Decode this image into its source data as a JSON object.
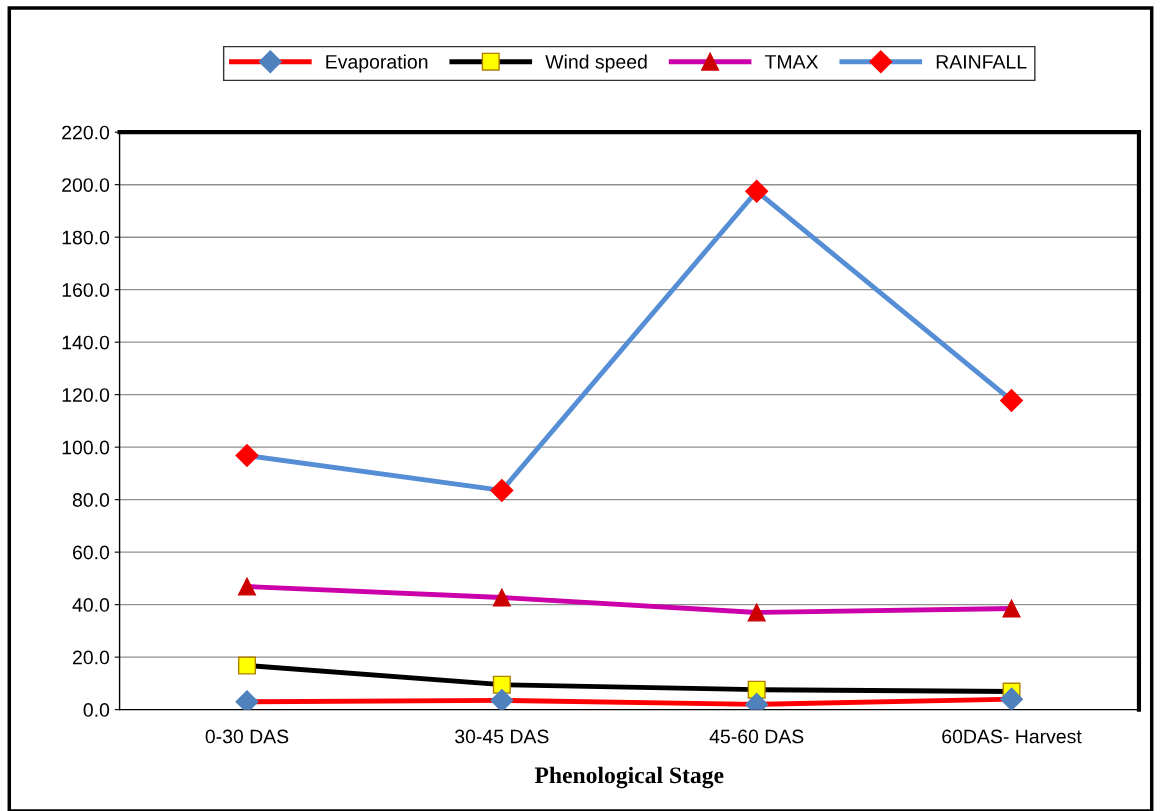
{
  "chart_data": {
    "type": "line",
    "xlabel": "Phenological Stage",
    "categories": [
      "0-30 DAS",
      "30-45 DAS",
      "45-60 DAS",
      "60DAS- Harvest"
    ],
    "series": [
      {
        "name": "Evaporation",
        "color": "#ff0000",
        "marker": "diamond",
        "colors": [
          "#4f81bd",
          "#4f81bd",
          "#4f81bd",
          "#4f81bd"
        ],
        "values": [
          3.0,
          3.5,
          2.0,
          4.0
        ]
      },
      {
        "name": "Wind speed",
        "color": "#000000",
        "marker": "square",
        "colors": [
          "#ffff00",
          "#ffff00",
          "#ffff00",
          "#ffff00"
        ],
        "values": [
          16.8,
          9.5,
          7.6,
          6.9
        ]
      },
      {
        "name": "TMAX",
        "color": "#cc00aa",
        "marker": "triangle",
        "colors": [
          "#cc0000",
          "#cc0000",
          "#cc0000",
          "#cc0000"
        ],
        "values": [
          46.9,
          42.7,
          37.0,
          38.5
        ]
      },
      {
        "name": "RAINFALL",
        "color": "#558ed5",
        "marker": "diamond",
        "colors": [
          "#ff0000",
          "#ff0000",
          "#ff0000",
          "#ff0000"
        ],
        "values": [
          96.8,
          83.5,
          197.5,
          117.8
        ]
      }
    ],
    "ylim": [
      0,
      220
    ],
    "yticks": [
      {
        "value": 0,
        "label": "0.0"
      },
      {
        "value": 20,
        "label": "20.0"
      },
      {
        "value": 40,
        "label": "40.0"
      },
      {
        "value": 60,
        "label": "60.0"
      },
      {
        "value": 80,
        "label": "80.0"
      },
      {
        "value": 100,
        "label": "100.0"
      },
      {
        "value": 120,
        "label": "120.0"
      },
      {
        "value": 140,
        "label": "140.0"
      },
      {
        "value": 160,
        "label": "160.0"
      },
      {
        "value": 180,
        "label": "180.0"
      },
      {
        "value": 200,
        "label": "200.0"
      },
      {
        "value": 220,
        "label": "220.0"
      }
    ],
    "grid": "y",
    "legend": "top",
    "line_style": "solid"
  }
}
